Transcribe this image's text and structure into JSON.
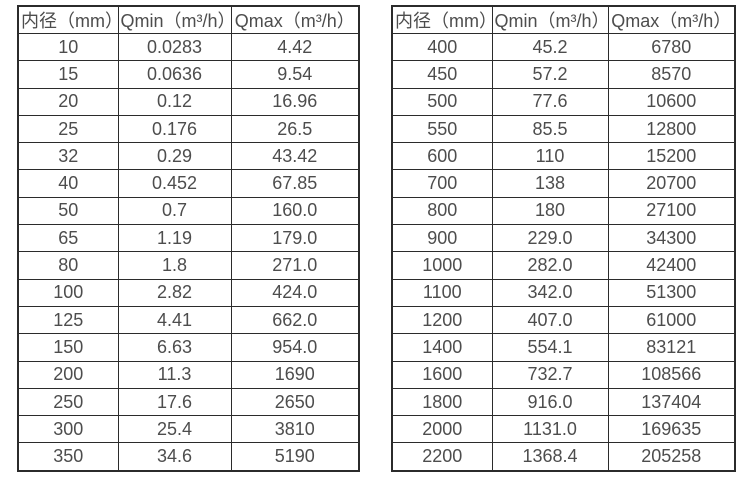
{
  "colors": {
    "background": "#ffffff",
    "border": "#2b2b2b",
    "text": "#4d4d4d"
  },
  "tables": [
    {
      "name": "small-diameters",
      "columns": [
        "内径（mm）",
        "Qmin（m³/h）",
        "Qmax（m³/h）"
      ],
      "rows": [
        [
          "10",
          "0.0283",
          "4.42"
        ],
        [
          "15",
          "0.0636",
          "9.54"
        ],
        [
          "20",
          "0.12",
          "16.96"
        ],
        [
          "25",
          "0.176",
          "26.5"
        ],
        [
          "32",
          "0.29",
          "43.42"
        ],
        [
          "40",
          "0.452",
          "67.85"
        ],
        [
          "50",
          "0.7",
          "160.0"
        ],
        [
          "65",
          "1.19",
          "179.0"
        ],
        [
          "80",
          "1.8",
          "271.0"
        ],
        [
          "100",
          "2.82",
          "424.0"
        ],
        [
          "125",
          "4.41",
          "662.0"
        ],
        [
          "150",
          "6.63",
          "954.0"
        ],
        [
          "200",
          "11.3",
          "1690"
        ],
        [
          "250",
          "17.6",
          "2650"
        ],
        [
          "300",
          "25.4",
          "3810"
        ],
        [
          "350",
          "34.6",
          "5190"
        ]
      ]
    },
    {
      "name": "large-diameters",
      "columns": [
        "内径（mm）",
        "Qmin（m³/h）",
        "Qmax（m³/h）"
      ],
      "rows": [
        [
          "400",
          "45.2",
          "6780"
        ],
        [
          "450",
          "57.2",
          "8570"
        ],
        [
          "500",
          "77.6",
          "10600"
        ],
        [
          "550",
          "85.5",
          "12800"
        ],
        [
          "600",
          "110",
          "15200"
        ],
        [
          "700",
          "138",
          "20700"
        ],
        [
          "800",
          "180",
          "27100"
        ],
        [
          "900",
          "229.0",
          "34300"
        ],
        [
          "1000",
          "282.0",
          "42400"
        ],
        [
          "1100",
          "342.0",
          "51300"
        ],
        [
          "1200",
          "407.0",
          "61000"
        ],
        [
          "1400",
          "554.1",
          "83121"
        ],
        [
          "1600",
          "732.7",
          "108566"
        ],
        [
          "1800",
          "916.0",
          "137404"
        ],
        [
          "2000",
          "1131.0",
          "169635"
        ],
        [
          "2200",
          "1368.4",
          "205258"
        ]
      ]
    }
  ]
}
